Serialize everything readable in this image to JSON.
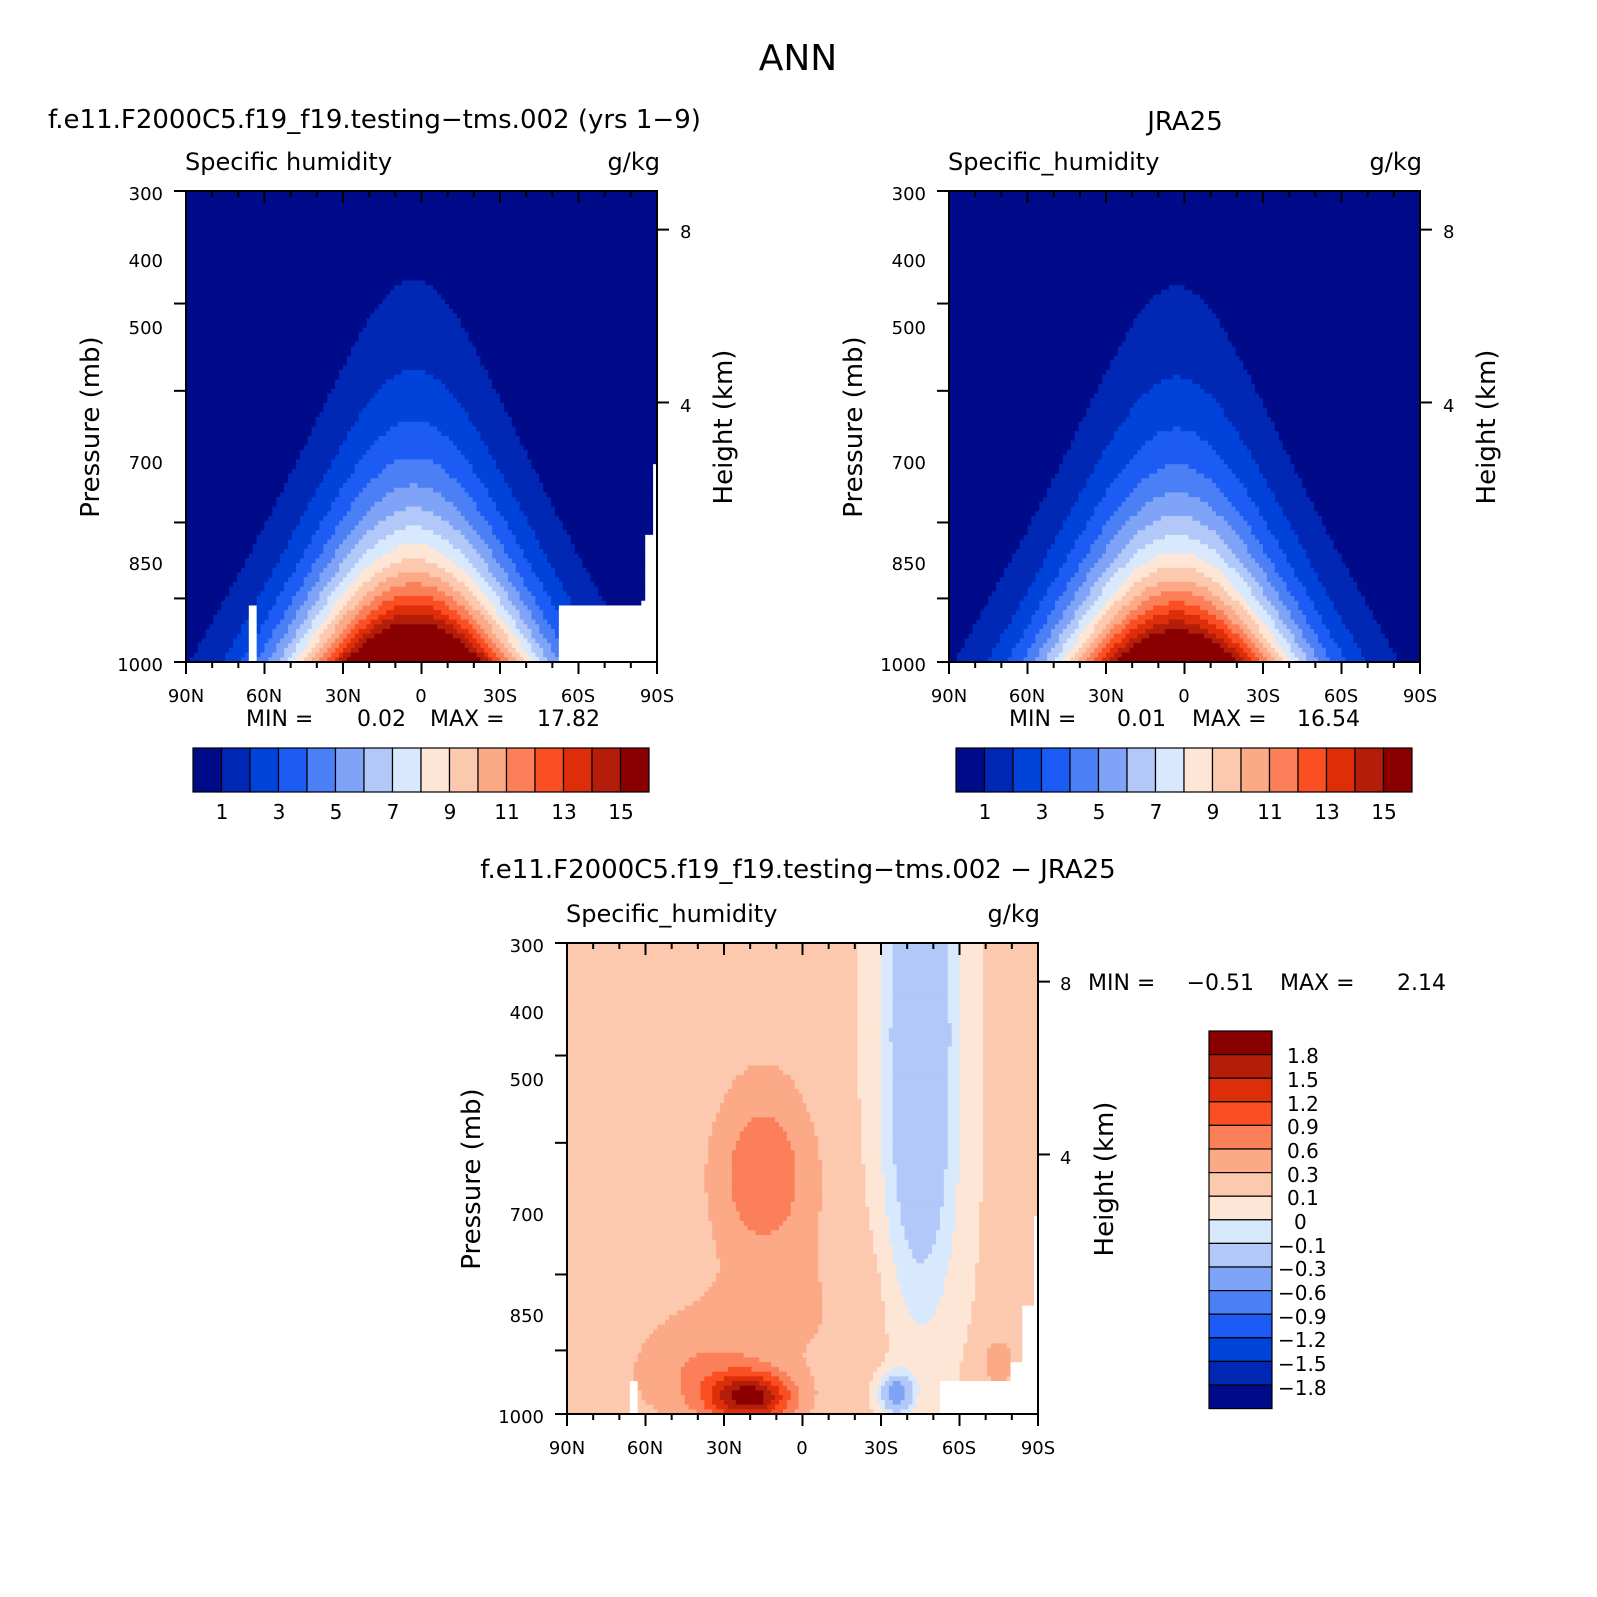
{
  "figure_title": "ANN",
  "colors": {
    "q_palette": [
      "#000b8a",
      "#0028b5",
      "#0043da",
      "#1c5cf5",
      "#4b7ff5",
      "#7fa3f6",
      "#b1c8f9",
      "#d8e8fd",
      "#fde6d5",
      "#fdc9ae",
      "#fca987",
      "#fb7f58",
      "#fb4e22",
      "#dd2e09",
      "#b31d0a",
      "#8a0000"
    ],
    "diff_palette": [
      "#000b8a",
      "#0028b5",
      "#0043da",
      "#1c5cf5",
      "#4b7ff5",
      "#7fa3f6",
      "#b1c8f9",
      "#d8e8fd",
      "#fde6d5",
      "#fdc9ae",
      "#fca987",
      "#fb7f58",
      "#fb4e22",
      "#dd2e09",
      "#b31d0a",
      "#8a0000"
    ]
  },
  "chart_data": [
    {
      "type": "heatmap",
      "title": "f.e11.F2000C5.f19_f19.testing-tms.002 (yrs 1-9)",
      "left_label": "Specific humidity",
      "right_label": "g/kg",
      "ylabel": "Pressure (mb)",
      "ylabel_right": "Height (km)",
      "x_ticks": [
        "90N",
        "60N",
        "30N",
        "0",
        "30S",
        "60S",
        "90S"
      ],
      "y_ticks": [
        "300",
        "400",
        "500",
        "700",
        "850",
        "1000"
      ],
      "y2_ticks": [
        "8",
        "4"
      ],
      "stats": {
        "min_label": "MIN =",
        "min": "0.02",
        "max_label": "MAX =",
        "max": "17.82"
      },
      "levels": [
        "1",
        "3",
        "5",
        "7",
        "9",
        "11",
        "13",
        "15"
      ],
      "max_value": 17.82
    },
    {
      "type": "heatmap",
      "title": "JRA25",
      "left_label": "Specific_humidity",
      "right_label": "g/kg",
      "ylabel": "Pressure (mb)",
      "ylabel_right": "Height (km)",
      "x_ticks": [
        "90N",
        "60N",
        "30N",
        "0",
        "30S",
        "60S",
        "90S"
      ],
      "y_ticks": [
        "300",
        "400",
        "500",
        "700",
        "850",
        "1000"
      ],
      "y2_ticks": [
        "8",
        "4"
      ],
      "stats": {
        "min_label": "MIN =",
        "min": "0.01",
        "max_label": "MAX =",
        "max": "16.54"
      },
      "levels": [
        "1",
        "3",
        "5",
        "7",
        "9",
        "11",
        "13",
        "15"
      ],
      "max_value": 16.54
    },
    {
      "type": "heatmap",
      "title": "f.e11.F2000C5.f19_f19.testing-tms.002 - JRA25",
      "left_label": "Specific_humidity",
      "right_label": "g/kg",
      "ylabel": "Pressure (mb)",
      "ylabel_right": "Height (km)",
      "x_ticks": [
        "90N",
        "60N",
        "30N",
        "0",
        "30S",
        "60S",
        "90S"
      ],
      "y_ticks": [
        "300",
        "400",
        "500",
        "700",
        "850",
        "1000"
      ],
      "y2_ticks": [
        "8",
        "4"
      ],
      "stats": {
        "min_label": "MIN =",
        "min": "-0.51",
        "max_label": "MAX =",
        "max": "2.14"
      },
      "levels": [
        "1.8",
        "1.5",
        "1.2",
        "0.9",
        "0.6",
        "0.3",
        "0.1",
        "0",
        "-0.1",
        "-0.3",
        "-0.6",
        "-0.9",
        "-1.2",
        "-1.5",
        "-1.8"
      ]
    }
  ]
}
